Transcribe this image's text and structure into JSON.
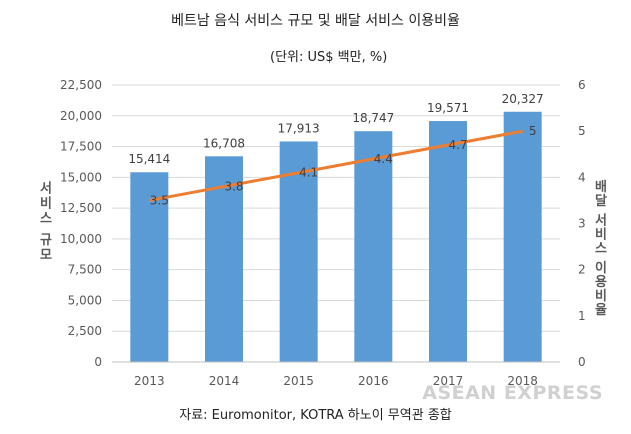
{
  "title": "베트남 음식 서비스 규모 및 배달 서비스 이용비율",
  "subtitle": "(단위: US$ 백만, %)",
  "source": "자료: Euromonitor, KOTRA 하노이 무역관 종합",
  "watermark": "ASEAN EXPRESS",
  "chart_data": {
    "type": "bar",
    "categories": [
      "2013",
      "2014",
      "2015",
      "2016",
      "2017",
      "2018"
    ],
    "series": [
      {
        "type": "bar",
        "axis": "left",
        "color": "#5b9bd5",
        "values": [
          15414,
          16708,
          17913,
          18747,
          19571,
          20327
        ],
        "labels": [
          "15,414",
          "16,708",
          "17,913",
          "18,747",
          "19,571",
          "20,327"
        ]
      },
      {
        "type": "line",
        "axis": "right",
        "color": "#ed7d31",
        "values": [
          3.5,
          3.8,
          4.1,
          4.4,
          4.7,
          5
        ],
        "labels": [
          "3.5",
          "3.8",
          "4.1",
          "4.4",
          "4.7",
          "5"
        ]
      }
    ],
    "ylabel_left": "서비스 규모",
    "ylabel_right": "배달 서비스 이용비율",
    "ylim_left": [
      0,
      22500
    ],
    "ylim_right": [
      0,
      6
    ],
    "yticks_left": [
      "0",
      "2,500",
      "5,000",
      "7,500",
      "10,000",
      "12,500",
      "15,000",
      "17,500",
      "20,000",
      "22,500"
    ],
    "yticks_right": [
      "0",
      "1",
      "2",
      "3",
      "4",
      "5",
      "6"
    ],
    "grid": true,
    "legend": "none"
  }
}
